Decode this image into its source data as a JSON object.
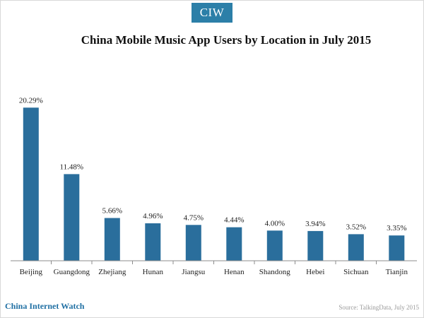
{
  "brand": {
    "badge": "CIW"
  },
  "chart_data": {
    "type": "bar",
    "title": "China Mobile Music App Users by Location in July 2015",
    "categories": [
      "Beijing",
      "Guangdong",
      "Zhejiang",
      "Hunan",
      "Jiangsu",
      "Henan",
      "Shandong",
      "Hebei",
      "Sichuan",
      "Tianjin"
    ],
    "values": [
      20.29,
      11.48,
      5.66,
      4.96,
      4.75,
      4.44,
      4.0,
      3.94,
      3.52,
      3.35
    ],
    "value_labels": [
      "20.29%",
      "11.48%",
      "5.66%",
      "4.96%",
      "4.75%",
      "4.44%",
      "4.00%",
      "3.94%",
      "3.52%",
      "3.35%"
    ],
    "xlabel": "",
    "ylabel": "",
    "ylim": [
      0,
      22
    ],
    "grid": false,
    "legend": "none",
    "bar_color": "#2a6e9c"
  },
  "footer": {
    "brand": "China Internet Watch",
    "source": "Source: TalkingData, July 2015"
  }
}
